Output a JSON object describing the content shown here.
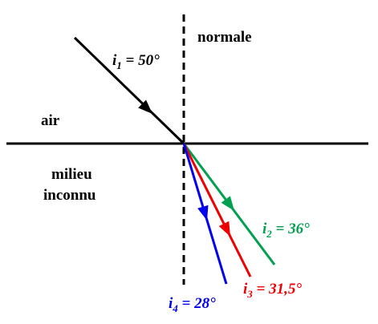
{
  "labels": {
    "normal": "normale",
    "air": "air",
    "medium": [
      "milieu",
      "inconnu"
    ]
  },
  "rays": [
    {
      "symbol": "i",
      "index": "1",
      "text": " = 50°"
    },
    {
      "symbol": "i",
      "index": "2",
      "text": " = 36°"
    },
    {
      "symbol": "i",
      "index": "3",
      "text": " = 31,5°"
    },
    {
      "symbol": "i",
      "index": "4",
      "text": " = 28°"
    }
  ]
}
